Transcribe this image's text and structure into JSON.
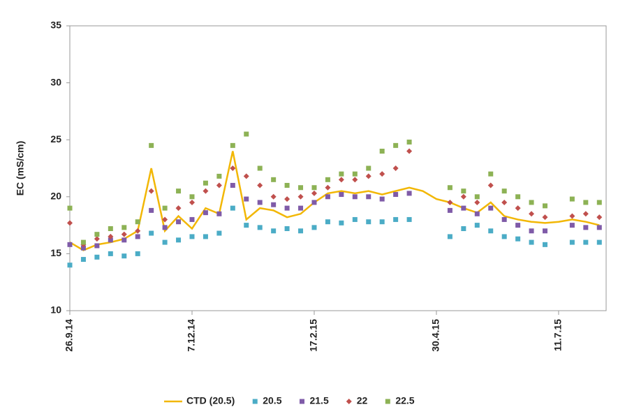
{
  "chart_data": {
    "type": "scatter",
    "y_label": "EC (mS/cm)",
    "x": [
      "2014-09-26",
      "2014-10-04",
      "2014-10-12",
      "2014-10-20",
      "2014-10-28",
      "2014-11-05",
      "2014-11-13",
      "2014-11-21",
      "2014-11-29",
      "2014-12-07",
      "2014-12-15",
      "2014-12-23",
      "2014-12-31",
      "2015-01-08",
      "2015-01-16",
      "2015-01-24",
      "2015-02-01",
      "2015-02-09",
      "2015-02-17",
      "2015-02-25",
      "2015-03-05",
      "2015-03-13",
      "2015-03-21",
      "2015-03-29",
      "2015-04-06",
      "2015-04-14",
      "2015-04-22",
      "2015-04-30",
      "2015-05-08",
      "2015-05-16",
      "2015-05-24",
      "2015-06-01",
      "2015-06-09",
      "2015-06-17",
      "2015-06-25",
      "2015-07-03",
      "2015-07-11",
      "2015-07-19",
      "2015-07-27",
      "2015-08-04"
    ],
    "xlim": [
      "2014-09-26",
      "2015-08-08"
    ],
    "xticks": [
      {
        "value": "2014-09-26",
        "label": "26.9.14"
      },
      {
        "value": "2014-12-07",
        "label": "7.12.14"
      },
      {
        "value": "2015-02-17",
        "label": "17.2.15"
      },
      {
        "value": "2015-04-30",
        "label": "30.4.15"
      },
      {
        "value": "2015-07-11",
        "label": "11.7.15"
      }
    ],
    "ylim": [
      10,
      35
    ],
    "yticks": [
      10,
      15,
      20,
      25,
      30,
      35
    ],
    "series": [
      {
        "name": "CTD (20.5)",
        "color": "#f2b705",
        "marker": "line",
        "values": [
          16,
          15.3,
          15.8,
          16,
          16.3,
          17,
          22.5,
          17,
          18.3,
          17.2,
          19,
          18.5,
          24,
          18,
          19,
          18.8,
          18.2,
          18.5,
          19.5,
          20.3,
          20.5,
          20.3,
          20.5,
          20.2,
          20.5,
          20.8,
          20.5,
          19.8,
          19.5,
          19,
          18.6,
          19.5,
          18.3,
          18,
          17.8,
          17.7,
          17.8,
          18,
          17.8,
          17.5
        ]
      },
      {
        "name": "20.5",
        "color": "#4bacc6",
        "marker": "square",
        "values": [
          14,
          14.5,
          14.7,
          15,
          14.8,
          15,
          16.8,
          16,
          16.2,
          16.5,
          16.5,
          16.8,
          19,
          17.5,
          17.3,
          17,
          17.2,
          17,
          17.3,
          17.8,
          17.7,
          18,
          17.8,
          17.8,
          18,
          18,
          null,
          null,
          16.5,
          17.2,
          17.5,
          17,
          16.5,
          16.3,
          16,
          15.8,
          null,
          16,
          16,
          16
        ]
      },
      {
        "name": "21.5",
        "color": "#7f5ba8",
        "marker": "square",
        "values": [
          15.8,
          15.5,
          15.7,
          16.2,
          16.2,
          16.5,
          18.8,
          17.3,
          17.8,
          18,
          18.6,
          18.5,
          21,
          19.8,
          19.5,
          19.3,
          19,
          19,
          19.5,
          20,
          20.2,
          20,
          20,
          19.8,
          20.2,
          20.3,
          null,
          null,
          18.8,
          19,
          18.5,
          19,
          18,
          17.5,
          17,
          17,
          null,
          17.5,
          17.3,
          17.3
        ]
      },
      {
        "name": "22",
        "color": "#c0504d",
        "marker": "diamond",
        "values": [
          17.7,
          15.8,
          16.3,
          16.5,
          16.7,
          17,
          20.5,
          18,
          19,
          19.5,
          20.5,
          21,
          22.5,
          21.8,
          21,
          20,
          19.8,
          20,
          20.3,
          20.8,
          21.5,
          21.5,
          21.8,
          22,
          22.5,
          24,
          null,
          null,
          19.5,
          20,
          19.5,
          21,
          19.5,
          19,
          18.5,
          18.2,
          null,
          18.3,
          18.5,
          18.2
        ]
      },
      {
        "name": "22.5",
        "color": "#8db255",
        "marker": "square",
        "values": [
          19,
          16,
          16.7,
          17.2,
          17.3,
          17.8,
          24.5,
          19,
          20.5,
          20,
          21.2,
          21.8,
          24.5,
          25.5,
          22.5,
          21.5,
          21,
          20.8,
          20.8,
          21.5,
          22,
          22,
          22.5,
          24,
          24.5,
          24.8,
          null,
          null,
          20.8,
          20.5,
          20,
          22,
          20.5,
          20,
          19.5,
          19.2,
          null,
          19.8,
          19.5,
          19.5
        ]
      }
    ],
    "legend": "bottom"
  }
}
